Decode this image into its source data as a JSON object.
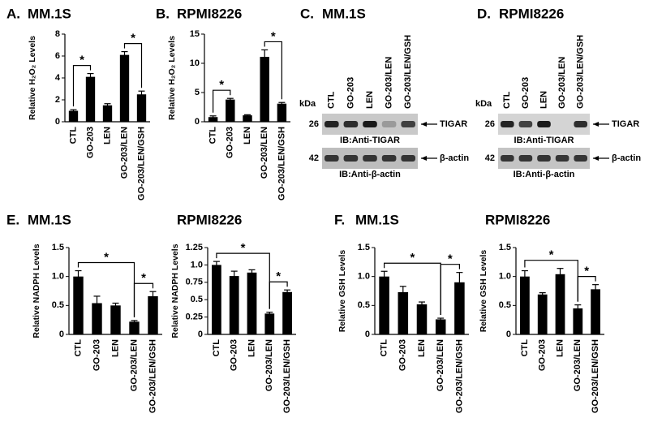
{
  "chart_data": [
    {
      "type": "bar",
      "panel": "A.",
      "title": "MM.1S",
      "y_label": "Relative H₂O₂ Levels",
      "categories": [
        "CTL",
        "GO-203",
        "LEN",
        "GO-203/LEN",
        "GO-203/LEN/GSH"
      ],
      "values": [
        1.0,
        4.1,
        1.5,
        6.1,
        2.5
      ],
      "errors": [
        0.1,
        0.3,
        0.15,
        0.3,
        0.3
      ],
      "color": "#000000",
      "ylim": [
        0,
        8
      ],
      "yticks": [
        0,
        2,
        4,
        6,
        8
      ],
      "significance": [
        {
          "label": "*",
          "between": [
            0,
            1
          ]
        },
        {
          "label": "*",
          "between": [
            3,
            4
          ]
        }
      ]
    },
    {
      "type": "bar",
      "panel": "B.",
      "title": "RPMI8226",
      "y_label": "Relative H₂O₂ Levels",
      "categories": [
        "CTL",
        "GO-203",
        "LEN",
        "GO-203/LEN",
        "GO-203/LEN/GSH"
      ],
      "values": [
        0.8,
        3.8,
        1.1,
        11.1,
        3.1
      ],
      "errors": [
        0.2,
        0.2,
        0.1,
        1.2,
        0.2
      ],
      "color": "#000000",
      "ylim": [
        0,
        15
      ],
      "yticks": [
        0,
        5,
        10,
        15
      ],
      "significance": [
        {
          "label": "*",
          "between": [
            0,
            1
          ]
        },
        {
          "label": "*",
          "between": [
            3,
            4
          ]
        }
      ]
    },
    {
      "type": "bar",
      "panel": "E.",
      "title": "MM.1S",
      "y_label": "Relative NADPH Levels",
      "categories": [
        "CTL",
        "GO-203",
        "LEN",
        "GO-203/LEN",
        "GO-203/LEN/GSH"
      ],
      "values": [
        1.0,
        0.54,
        0.5,
        0.22,
        0.66
      ],
      "errors": [
        0.1,
        0.12,
        0.04,
        0.02,
        0.08
      ],
      "color": "#000000",
      "ylim": [
        0,
        1.5
      ],
      "yticks": [
        0,
        0.5,
        {
          "value": 1,
          "label": "1.0"
        },
        1.5
      ],
      "significance": [
        {
          "label": "*",
          "between": [
            0,
            3
          ]
        },
        {
          "label": "*",
          "between": [
            3,
            4
          ]
        }
      ]
    },
    {
      "type": "bar",
      "title": "RPMI8226",
      "y_label": "Relative NADPH Levels",
      "categories": [
        "CTL",
        "GO-203",
        "LEN",
        "GO-203/LEN",
        "GO-203/LEN/GSH"
      ],
      "values": [
        1.0,
        0.84,
        0.89,
        0.3,
        0.61
      ],
      "errors": [
        0.05,
        0.07,
        0.04,
        0.02,
        0.03
      ],
      "color": "#000000",
      "ylim": [
        0,
        1.25
      ],
      "yticks": [
        0,
        0.25,
        0.5,
        0.75,
        {
          "value": 1,
          "label": "1.0"
        },
        1.25
      ],
      "significance": [
        {
          "label": "*",
          "between": [
            0,
            3
          ]
        },
        {
          "label": "*",
          "between": [
            3,
            4
          ]
        }
      ]
    },
    {
      "type": "bar",
      "panel": "F.",
      "title": "MM.1S",
      "y_label": "Relative GSH Levels",
      "categories": [
        "CTL",
        "GO-203",
        "LEN",
        "GO-203/LEN",
        "GO-203/LEN/GSH"
      ],
      "values": [
        1.0,
        0.73,
        0.52,
        0.26,
        0.9
      ],
      "errors": [
        0.09,
        0.1,
        0.04,
        0.02,
        0.17
      ],
      "color": "#000000",
      "ylim": [
        0,
        1.5
      ],
      "yticks": [
        0,
        0.5,
        {
          "value": 1,
          "label": "1.0"
        },
        1.5
      ],
      "significance": [
        {
          "label": "*",
          "between": [
            0,
            3
          ]
        },
        {
          "label": "*",
          "between": [
            3,
            4
          ]
        }
      ]
    },
    {
      "type": "bar",
      "title": "RPMI8226",
      "y_label": "Relative GSH Levels",
      "categories": [
        "CTL",
        "GO-203",
        "LEN",
        "GO-203/LEN",
        "GO-203/LEN/GSH"
      ],
      "values": [
        1.0,
        0.69,
        1.04,
        0.45,
        0.78
      ],
      "errors": [
        0.1,
        0.03,
        0.1,
        0.06,
        0.08
      ],
      "color": "#000000",
      "ylim": [
        0,
        1.5
      ],
      "yticks": [
        0,
        0.5,
        {
          "value": 1,
          "label": "1.0"
        },
        1.5
      ],
      "significance": [
        {
          "label": "*",
          "between": [
            0,
            3
          ]
        },
        {
          "label": "*",
          "between": [
            3,
            4
          ]
        }
      ]
    }
  ],
  "blots": [
    {
      "panel": "C.",
      "title": "MM.1S",
      "unit": "kDa",
      "lanes": [
        "CTL",
        "GO-203",
        "LEN",
        "GO-203/LEN",
        "GO-203/LEN/GSH"
      ],
      "rows": [
        {
          "marker": "26",
          "target": "TIGAR",
          "caption": "IB:Anti-TIGAR"
        },
        {
          "marker": "42",
          "target": "β-actin",
          "caption": "IB:Anti-β-actin"
        }
      ]
    },
    {
      "panel": "D.",
      "title": "RPMI8226",
      "unit": "kDa",
      "lanes": [
        "CTL",
        "GO-203",
        "LEN",
        "GO-203/LEN",
        "GO-203/LEN/GSH"
      ],
      "rows": [
        {
          "marker": "26",
          "target": "TIGAR",
          "caption": "IB:Anti-TIGAR"
        },
        {
          "marker": "42",
          "target": "β-actin",
          "caption": "IB:Anti-β-actin"
        }
      ]
    }
  ]
}
